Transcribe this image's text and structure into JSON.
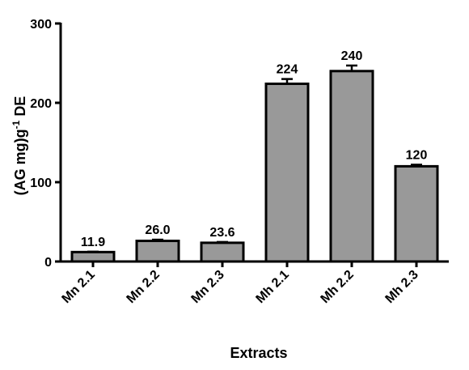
{
  "chart_data": {
    "type": "bar",
    "categories": [
      "Mn 2.1",
      "Mn 2.2",
      "Mn 2.3",
      "Mh 2.1",
      "Mh 2.2",
      "Mh 2.3"
    ],
    "values": [
      11.9,
      26.0,
      23.6,
      224,
      240,
      120
    ],
    "errors": [
      0.5,
      1.5,
      1.0,
      6,
      7,
      2
    ],
    "data_labels": [
      "11.9",
      "26.0",
      "23.6",
      "224",
      "240",
      "120"
    ],
    "xlabel": "Extracts",
    "ylabel": {
      "main": "(AG mg)g",
      "superscript": "-1",
      "suffix": " DE"
    },
    "ylim": [
      0,
      300
    ],
    "yticks": [
      0,
      100,
      200,
      300
    ],
    "ytick_labels": [
      "0",
      "100",
      "200",
      "300"
    ],
    "bar_color": "#999999",
    "grid": false,
    "legend": "none"
  }
}
